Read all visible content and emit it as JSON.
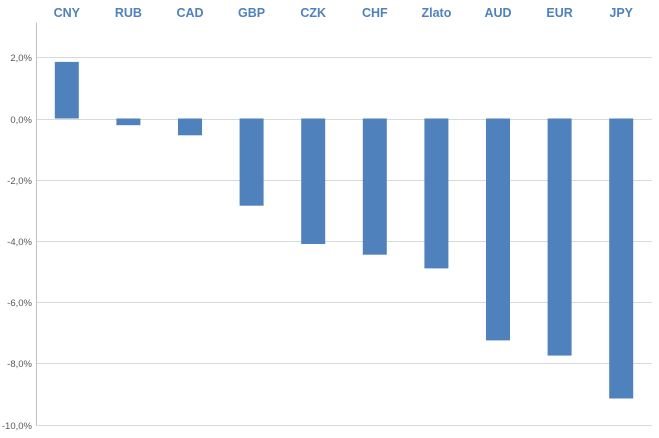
{
  "chart_data": {
    "type": "bar",
    "categories": [
      "CNY",
      "RUB",
      "CAD",
      "GBP",
      "CZK",
      "CHF",
      "Zlato",
      "AUD",
      "EUR",
      "JPY"
    ],
    "values": [
      1.85,
      -0.22,
      -0.55,
      -2.85,
      -4.1,
      -4.45,
      -4.9,
      -7.25,
      -7.75,
      -9.15
    ],
    "ylim": [
      -10,
      3
    ],
    "yticks": [
      2,
      0,
      -2,
      -4,
      -6,
      -8,
      -10
    ],
    "ytick_labels": [
      "2,0%",
      "0,0%",
      "-2,0%",
      "-4,0%",
      "-6,0%",
      "-8,0%",
      "-10,0%"
    ],
    "category_labels_position": "top",
    "grid": true,
    "legend": "none",
    "colors": {
      "bar": "#4f81bd",
      "category_label": "#4f81bd",
      "grid": "#d9d9d9",
      "axis": "#bfbfbf"
    }
  }
}
